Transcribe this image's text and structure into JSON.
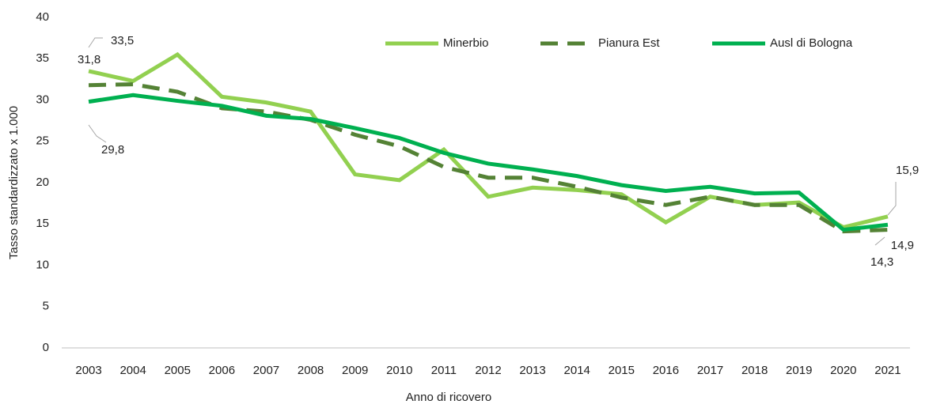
{
  "chart_data": {
    "type": "line",
    "x_label": "Anno di ricovero",
    "y_label": "Tasso standardizzato x 1.000",
    "categories": [
      "2003",
      "2004",
      "2005",
      "2006",
      "2007",
      "2008",
      "2009",
      "2010",
      "2011",
      "2012",
      "2013",
      "2014",
      "2015",
      "2016",
      "2017",
      "2018",
      "2019",
      "2020",
      "2021"
    ],
    "series": [
      {
        "name": "Minerbio",
        "color": "#92d050",
        "dash": false,
        "values": [
          33.5,
          32.3,
          35.5,
          30.4,
          29.7,
          28.6,
          21.0,
          20.3,
          24.0,
          18.3,
          19.4,
          19.1,
          18.6,
          15.2,
          18.3,
          17.3,
          17.6,
          14.6,
          15.9
        ],
        "value_labels": [
          "33,5",
          null,
          null,
          null,
          null,
          null,
          null,
          null,
          null,
          null,
          null,
          null,
          null,
          null,
          null,
          null,
          null,
          null,
          "15,9"
        ]
      },
      {
        "name": "Pianura Est",
        "color": "#548235",
        "dash": true,
        "values": [
          31.8,
          31.9,
          31.0,
          29.0,
          28.6,
          27.6,
          25.8,
          24.4,
          21.9,
          20.6,
          20.6,
          19.5,
          18.2,
          17.3,
          18.3,
          17.3,
          17.3,
          14.1,
          14.3
        ],
        "value_labels": [
          "31,8",
          null,
          null,
          null,
          null,
          null,
          null,
          null,
          null,
          null,
          null,
          null,
          null,
          null,
          null,
          null,
          null,
          null,
          "14,3"
        ]
      },
      {
        "name": "Ausl di Bologna",
        "color": "#00b050",
        "dash": false,
        "values": [
          29.8,
          30.6,
          29.9,
          29.3,
          28.1,
          27.7,
          26.6,
          25.4,
          23.6,
          22.3,
          21.6,
          20.8,
          19.7,
          19.0,
          19.5,
          18.7,
          18.8,
          14.3,
          14.9
        ],
        "value_labels": [
          "29,8",
          null,
          null,
          null,
          null,
          null,
          null,
          null,
          null,
          null,
          null,
          null,
          null,
          null,
          null,
          null,
          null,
          null,
          "14,9"
        ]
      }
    ],
    "ylim": [
      0,
      40
    ],
    "yticks": [
      0,
      5,
      10,
      15,
      20,
      25,
      30,
      35,
      40
    ],
    "grid": false,
    "legend": "top-right"
  }
}
